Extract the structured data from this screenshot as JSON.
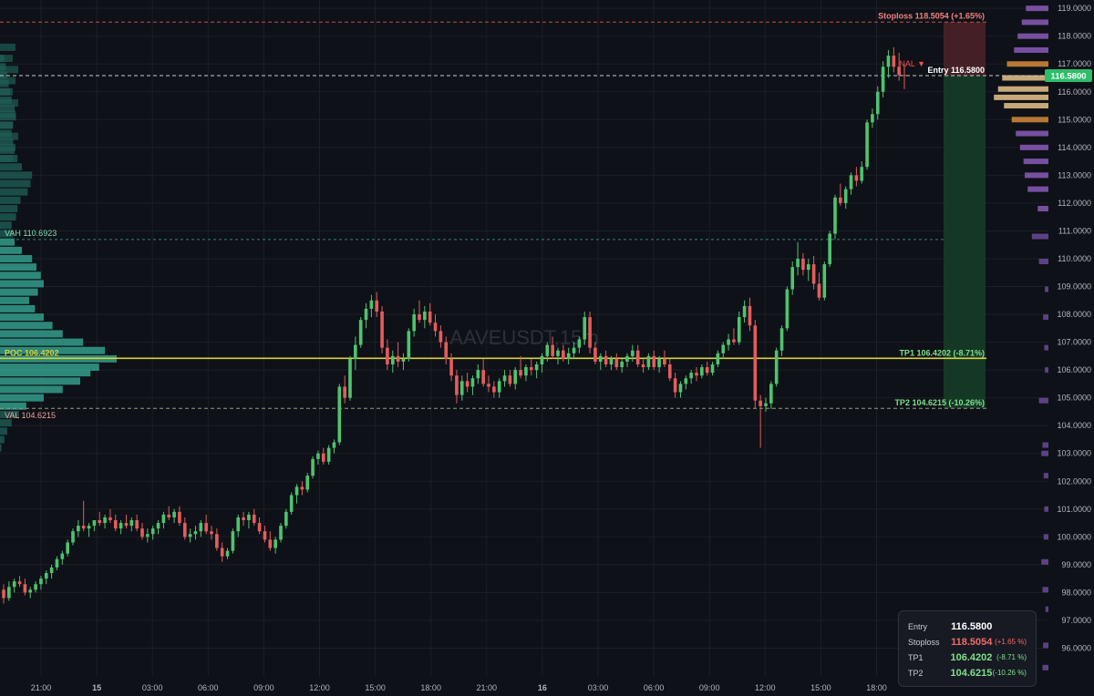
{
  "chart_data": {
    "type": "candlestick",
    "symbol_watermark": "AAVEUSDT,15m",
    "y_axis": {
      "min": 95.0,
      "max": 119.3,
      "tick_labels": [
        "96.0000",
        "97.0000",
        "98.0000",
        "99.0000",
        "100.0000",
        "101.0000",
        "102.0000",
        "103.0000",
        "104.0000",
        "105.0000",
        "106.0000",
        "107.0000",
        "108.0000",
        "109.0000",
        "110.0000",
        "111.0000",
        "112.0000",
        "113.0000",
        "114.0000",
        "115.0000",
        "116.0000",
        "117.0000",
        "118.0000",
        "119.0000"
      ],
      "current_price_label": "116.5800"
    },
    "x_axis": {
      "tick_labels": [
        "21:00",
        "15",
        "03:00",
        "06:00",
        "09:00",
        "12:00",
        "15:00",
        "18:00",
        "21:00",
        "16",
        "03:00",
        "06:00",
        "09:00",
        "12:00",
        "15:00",
        "18:00"
      ]
    },
    "candles": [
      [
        98.1,
        98.3,
        97.6,
        97.8
      ],
      [
        97.8,
        98.4,
        97.7,
        98.2
      ],
      [
        98.2,
        98.5,
        98.0,
        98.4
      ],
      [
        98.4,
        98.6,
        98.2,
        98.3
      ],
      [
        98.3,
        98.5,
        97.9,
        98.0
      ],
      [
        98.0,
        98.2,
        97.8,
        98.1
      ],
      [
        98.1,
        98.4,
        98.0,
        98.3
      ],
      [
        98.3,
        98.6,
        98.1,
        98.5
      ],
      [
        98.5,
        98.8,
        98.3,
        98.7
      ],
      [
        98.7,
        99.0,
        98.5,
        98.9
      ],
      [
        98.9,
        99.3,
        98.8,
        99.2
      ],
      [
        99.2,
        99.5,
        99.0,
        99.4
      ],
      [
        99.4,
        99.9,
        99.3,
        99.8
      ],
      [
        99.8,
        100.3,
        99.7,
        100.2
      ],
      [
        100.2,
        100.6,
        100.0,
        100.4
      ],
      [
        100.4,
        101.3,
        100.2,
        100.3
      ],
      [
        100.3,
        100.5,
        100.0,
        100.4
      ],
      [
        100.4,
        100.6,
        100.2,
        100.6
      ],
      [
        100.6,
        100.9,
        100.4,
        100.5
      ],
      [
        100.5,
        100.8,
        100.3,
        100.7
      ],
      [
        100.7,
        101.0,
        100.5,
        100.6
      ],
      [
        100.6,
        100.8,
        100.2,
        100.3
      ],
      [
        100.3,
        100.6,
        100.1,
        100.5
      ],
      [
        100.5,
        100.8,
        100.3,
        100.4
      ],
      [
        100.4,
        100.7,
        100.2,
        100.6
      ],
      [
        100.6,
        100.8,
        100.2,
        100.3
      ],
      [
        100.3,
        100.5,
        99.9,
        100.0
      ],
      [
        100.0,
        100.3,
        99.8,
        100.1
      ],
      [
        100.1,
        100.4,
        99.9,
        100.3
      ],
      [
        100.3,
        100.6,
        100.1,
        100.5
      ],
      [
        100.5,
        100.9,
        100.3,
        100.8
      ],
      [
        100.8,
        101.1,
        100.6,
        100.7
      ],
      [
        100.7,
        101.0,
        100.5,
        100.9
      ],
      [
        100.9,
        101.1,
        100.4,
        100.5
      ],
      [
        100.5,
        100.7,
        99.9,
        100.0
      ],
      [
        100.0,
        100.3,
        99.8,
        100.1
      ],
      [
        100.1,
        100.4,
        99.9,
        100.2
      ],
      [
        100.2,
        100.6,
        100.0,
        100.5
      ],
      [
        100.5,
        100.8,
        100.1,
        100.2
      ],
      [
        100.2,
        100.4,
        99.9,
        100.1
      ],
      [
        100.1,
        100.3,
        99.5,
        99.6
      ],
      [
        99.6,
        99.8,
        99.1,
        99.3
      ],
      [
        99.3,
        99.6,
        99.2,
        99.5
      ],
      [
        99.5,
        100.3,
        99.4,
        100.2
      ],
      [
        100.2,
        100.8,
        100.0,
        100.7
      ],
      [
        100.7,
        100.9,
        100.4,
        100.6
      ],
      [
        100.6,
        100.9,
        100.3,
        100.8
      ],
      [
        100.8,
        101.0,
        100.4,
        100.5
      ],
      [
        100.5,
        100.7,
        100.1,
        100.2
      ],
      [
        100.2,
        100.4,
        99.8,
        99.9
      ],
      [
        99.9,
        100.2,
        99.5,
        99.6
      ],
      [
        99.6,
        100.0,
        99.4,
        99.9
      ],
      [
        99.9,
        100.5,
        99.8,
        100.4
      ],
      [
        100.4,
        101.0,
        100.3,
        100.9
      ],
      [
        100.9,
        101.6,
        100.8,
        101.5
      ],
      [
        101.5,
        101.9,
        101.2,
        101.8
      ],
      [
        101.8,
        102.0,
        101.5,
        101.7
      ],
      [
        101.7,
        102.3,
        101.6,
        102.2
      ],
      [
        102.2,
        102.9,
        102.1,
        102.8
      ],
      [
        102.8,
        103.1,
        102.6,
        103.0
      ],
      [
        103.0,
        103.2,
        102.6,
        102.7
      ],
      [
        102.7,
        103.3,
        102.6,
        103.2
      ],
      [
        103.2,
        103.5,
        103.0,
        103.4
      ],
      [
        103.4,
        105.5,
        103.3,
        105.4
      ],
      [
        105.4,
        105.8,
        104.8,
        105.0
      ],
      [
        105.0,
        106.5,
        104.9,
        106.4
      ],
      [
        106.4,
        107.2,
        106.0,
        106.9
      ],
      [
        106.9,
        107.9,
        106.8,
        107.8
      ],
      [
        107.8,
        108.4,
        107.5,
        108.2
      ],
      [
        108.2,
        108.7,
        107.9,
        108.5
      ],
      [
        108.5,
        108.8,
        107.9,
        108.1
      ],
      [
        108.1,
        108.3,
        106.6,
        106.8
      ],
      [
        106.8,
        107.1,
        106.0,
        106.2
      ],
      [
        106.2,
        106.7,
        105.9,
        106.5
      ],
      [
        106.5,
        107.0,
        106.1,
        106.3
      ],
      [
        106.3,
        106.6,
        106.0,
        106.4
      ],
      [
        106.4,
        107.5,
        106.3,
        107.4
      ],
      [
        107.4,
        108.2,
        107.2,
        108.0
      ],
      [
        108.0,
        108.5,
        107.7,
        107.8
      ],
      [
        107.8,
        108.3,
        107.5,
        108.1
      ],
      [
        108.1,
        108.4,
        107.6,
        107.7
      ],
      [
        107.7,
        108.0,
        107.2,
        107.4
      ],
      [
        107.4,
        107.6,
        106.8,
        107.0
      ],
      [
        107.0,
        107.2,
        106.2,
        106.4
      ],
      [
        106.4,
        106.6,
        105.6,
        105.8
      ],
      [
        105.8,
        106.0,
        104.8,
        105.1
      ],
      [
        105.1,
        105.8,
        104.9,
        105.6
      ],
      [
        105.6,
        105.9,
        105.2,
        105.4
      ],
      [
        105.4,
        105.8,
        105.1,
        105.7
      ],
      [
        105.7,
        106.2,
        105.5,
        106.0
      ],
      [
        106.0,
        106.4,
        105.4,
        105.5
      ],
      [
        105.5,
        105.8,
        105.2,
        105.4
      ],
      [
        105.4,
        105.6,
        105.0,
        105.2
      ],
      [
        105.2,
        105.7,
        105.0,
        105.6
      ],
      [
        105.6,
        106.0,
        105.4,
        105.8
      ],
      [
        105.8,
        106.0,
        105.4,
        105.5
      ],
      [
        105.5,
        106.1,
        105.3,
        106.0
      ],
      [
        106.0,
        106.5,
        105.7,
        105.8
      ],
      [
        105.8,
        106.2,
        105.6,
        106.1
      ],
      [
        106.1,
        106.4,
        105.8,
        106.0
      ],
      [
        106.0,
        106.3,
        105.7,
        106.2
      ],
      [
        106.2,
        106.6,
        105.9,
        106.5
      ],
      [
        106.5,
        107.0,
        106.3,
        106.9
      ],
      [
        106.9,
        107.2,
        106.4,
        106.5
      ],
      [
        106.5,
        106.8,
        106.2,
        106.7
      ],
      [
        106.7,
        106.9,
        106.3,
        106.4
      ],
      [
        106.4,
        106.8,
        106.2,
        106.6
      ],
      [
        106.6,
        107.0,
        106.4,
        106.8
      ],
      [
        106.8,
        107.2,
        106.6,
        107.1
      ],
      [
        107.1,
        108.1,
        106.9,
        107.9
      ],
      [
        107.9,
        108.1,
        106.6,
        106.8
      ],
      [
        106.8,
        107.0,
        106.2,
        106.3
      ],
      [
        106.3,
        106.6,
        106.0,
        106.5
      ],
      [
        106.5,
        106.7,
        106.1,
        106.2
      ],
      [
        106.2,
        106.5,
        106.0,
        106.4
      ],
      [
        106.4,
        106.6,
        106.0,
        106.1
      ],
      [
        106.1,
        106.4,
        105.9,
        106.3
      ],
      [
        106.3,
        106.6,
        106.1,
        106.5
      ],
      [
        106.5,
        106.9,
        106.3,
        106.7
      ],
      [
        106.7,
        106.9,
        106.1,
        106.2
      ],
      [
        106.2,
        106.4,
        105.9,
        106.1
      ],
      [
        106.1,
        106.6,
        106.0,
        106.5
      ],
      [
        106.5,
        106.7,
        106.0,
        106.1
      ],
      [
        106.1,
        106.5,
        105.9,
        106.4
      ],
      [
        106.4,
        106.7,
        106.1,
        106.2
      ],
      [
        106.2,
        106.4,
        105.6,
        105.7
      ],
      [
        105.7,
        105.9,
        105.0,
        105.2
      ],
      [
        105.2,
        105.6,
        105.0,
        105.5
      ],
      [
        105.5,
        105.8,
        105.3,
        105.7
      ],
      [
        105.7,
        106.0,
        105.5,
        105.9
      ],
      [
        105.9,
        106.1,
        105.6,
        105.8
      ],
      [
        105.8,
        106.2,
        105.7,
        106.1
      ],
      [
        106.1,
        106.3,
        105.8,
        105.9
      ],
      [
        105.9,
        106.3,
        105.8,
        106.2
      ],
      [
        106.2,
        106.7,
        106.1,
        106.6
      ],
      [
        106.6,
        107.0,
        106.4,
        106.9
      ],
      [
        106.9,
        107.3,
        106.7,
        107.1
      ],
      [
        107.1,
        107.5,
        106.9,
        107.0
      ],
      [
        107.0,
        108.1,
        106.9,
        107.9
      ],
      [
        107.9,
        108.5,
        107.7,
        108.3
      ],
      [
        108.3,
        108.6,
        107.4,
        107.6
      ],
      [
        107.6,
        107.8,
        104.6,
        104.9
      ],
      [
        104.9,
        105.1,
        103.2,
        104.7
      ],
      [
        104.7,
        105.0,
        104.5,
        104.8
      ],
      [
        104.8,
        105.6,
        104.6,
        105.5
      ],
      [
        105.5,
        106.8,
        105.4,
        106.7
      ],
      [
        106.7,
        107.6,
        106.5,
        107.5
      ],
      [
        107.5,
        109.0,
        107.4,
        108.9
      ],
      [
        108.9,
        109.9,
        108.7,
        109.7
      ],
      [
        109.7,
        110.6,
        109.4,
        110.0
      ],
      [
        110.0,
        110.2,
        109.4,
        109.6
      ],
      [
        109.6,
        110.0,
        109.2,
        109.8
      ],
      [
        109.8,
        110.1,
        108.9,
        109.1
      ],
      [
        109.1,
        109.5,
        108.5,
        108.6
      ],
      [
        108.6,
        109.9,
        108.5,
        109.8
      ],
      [
        109.8,
        111.0,
        109.7,
        110.9
      ],
      [
        110.9,
        112.3,
        110.7,
        112.2
      ],
      [
        112.2,
        112.7,
        111.9,
        112.0
      ],
      [
        112.0,
        112.6,
        111.8,
        112.5
      ],
      [
        112.5,
        113.1,
        112.3,
        113.0
      ],
      [
        113.0,
        113.3,
        112.6,
        112.8
      ],
      [
        112.8,
        113.5,
        112.7,
        113.3
      ],
      [
        113.3,
        115.0,
        113.2,
        114.9
      ],
      [
        114.9,
        115.4,
        114.7,
        115.2
      ],
      [
        115.2,
        116.2,
        115.0,
        116.0
      ],
      [
        116.0,
        117.1,
        115.8,
        116.9
      ],
      [
        116.9,
        117.5,
        116.5,
        117.3
      ],
      [
        117.3,
        117.6,
        116.7,
        116.9
      ],
      [
        116.9,
        117.4,
        116.4,
        116.6
      ],
      [
        116.6,
        117.0,
        116.1,
        116.58
      ]
    ],
    "volume_profile": {
      "poc": 106.4202,
      "vah": 110.6923,
      "val": 104.6215,
      "bins": [
        [
          103.2,
          0.01
        ],
        [
          103.5,
          0.03
        ],
        [
          103.8,
          0.05
        ],
        [
          104.1,
          0.08
        ],
        [
          104.4,
          0.13
        ],
        [
          104.7,
          0.18
        ],
        [
          105.0,
          0.3
        ],
        [
          105.3,
          0.43
        ],
        [
          105.6,
          0.55
        ],
        [
          105.9,
          0.62
        ],
        [
          106.1,
          0.68
        ],
        [
          106.4,
          0.8
        ],
        [
          106.7,
          0.72
        ],
        [
          107.0,
          0.57
        ],
        [
          107.3,
          0.43
        ],
        [
          107.6,
          0.36
        ],
        [
          107.9,
          0.3
        ],
        [
          108.2,
          0.24
        ],
        [
          108.5,
          0.2
        ],
        [
          108.8,
          0.26
        ],
        [
          109.1,
          0.3
        ],
        [
          109.4,
          0.28
        ],
        [
          109.7,
          0.25
        ],
        [
          110.0,
          0.22
        ],
        [
          110.3,
          0.15
        ],
        [
          110.6,
          0.1
        ],
        [
          110.9,
          0.09
        ],
        [
          111.2,
          0.08
        ],
        [
          111.5,
          0.11
        ],
        [
          111.8,
          0.12
        ],
        [
          112.1,
          0.14
        ],
        [
          112.4,
          0.19
        ],
        [
          112.7,
          0.21
        ],
        [
          113.0,
          0.22
        ],
        [
          113.3,
          0.15
        ],
        [
          113.6,
          0.12
        ],
        [
          113.9,
          0.1
        ],
        [
          114.2,
          0.09
        ],
        [
          114.5,
          0.08
        ],
        [
          114.8,
          0.09
        ],
        [
          115.1,
          0.11
        ],
        [
          115.4,
          0.1
        ],
        [
          115.7,
          0.08
        ],
        [
          116.0,
          0.07
        ],
        [
          116.3,
          0.06
        ],
        [
          116.6,
          0.05
        ],
        [
          116.9,
          0.04
        ],
        [
          117.2,
          0.03
        ]
      ]
    },
    "right_profile": {
      "bins": [
        [
          95.3,
          0.1
        ],
        [
          96.1,
          0.09
        ],
        [
          97.4,
          0.05
        ],
        [
          98.1,
          0.1
        ],
        [
          99.1,
          0.12
        ],
        [
          100.0,
          0.08
        ],
        [
          101.0,
          0.07
        ],
        [
          102.2,
          0.08
        ],
        [
          103.0,
          0.12
        ],
        [
          103.3,
          0.1
        ],
        [
          104.9,
          0.16
        ],
        [
          106.0,
          0.06
        ],
        [
          106.8,
          0.07
        ],
        [
          107.9,
          0.09
        ],
        [
          108.9,
          0.06
        ],
        [
          109.9,
          0.16
        ],
        [
          110.8,
          0.28
        ],
        [
          111.8,
          0.18
        ],
        [
          112.5,
          0.35
        ],
        [
          113.0,
          0.4
        ],
        [
          113.5,
          0.42
        ],
        [
          114.0,
          0.48
        ],
        [
          114.5,
          0.55
        ],
        [
          115.0,
          0.62
        ],
        [
          115.5,
          0.75
        ],
        [
          115.8,
          0.92
        ],
        [
          116.1,
          0.85
        ],
        [
          116.5,
          0.78
        ],
        [
          117.0,
          0.7
        ],
        [
          117.5,
          0.58
        ],
        [
          118.0,
          0.52
        ],
        [
          118.5,
          0.45
        ],
        [
          119.0,
          0.38
        ]
      ]
    }
  },
  "labels": {
    "stoploss_line": "Stoploss 118.5054 (+1.65%)",
    "entry_line": "Entry 116.5800",
    "signal": "NAL ▼",
    "tp1_line": "TP1 106.4202 (-8.71%)",
    "tp2_line": "TP2 104.6215 (-10.26%)",
    "vah": "VAH  110.6923",
    "poc": "POC 106.4202",
    "val": "VAL  104.6215"
  },
  "levels": {
    "stoploss": 118.5054,
    "entry": 116.58,
    "tp1": 106.4202,
    "tp2": 104.6215
  },
  "info_box": {
    "entry_label": "Entry",
    "entry_value": "116.5800",
    "stoploss_label": "Stoploss",
    "stoploss_value": "118.5054",
    "stoploss_pct": "(+1.65 %)",
    "tp1_label": "TP1",
    "tp1_value": "106.4202",
    "tp1_pct": "(-8.71 %)",
    "tp2_label": "TP2",
    "tp2_value": "104.6215",
    "tp2_pct": "(-10.26 %)"
  },
  "colors": {
    "background": "#0e1117",
    "grid": "#1c1f27",
    "up": "#4fc36e",
    "down": "#e35d5d",
    "poc": "#d6d13a",
    "vah_line": "#2f8a6a",
    "profile_bar": "#2f8f7f",
    "stop_zone": "#4a2228",
    "target_zone": "#163a27",
    "current_price_bg": "#2ebd6a"
  }
}
